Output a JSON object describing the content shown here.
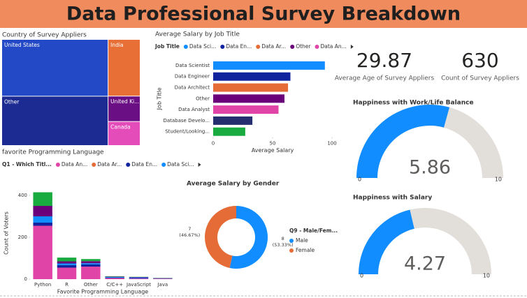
{
  "header": {
    "title": "Data Professional Survey Breakdown"
  },
  "chart_data": [
    {
      "type": "treemap",
      "title": "Country of Survey Appliers",
      "categories": [
        "United States",
        "India",
        "Other",
        "United Ki...",
        "Canada"
      ],
      "values": [
        259,
        78,
        225,
        35,
        33
      ],
      "colors": [
        "#2349c6",
        "#e86f36",
        "#1c2b92",
        "#6b0f84",
        "#e44cb9"
      ]
    },
    {
      "type": "hbar",
      "title": "Average Salary by Job Title",
      "legend_title": "Job Title",
      "legend_labels": [
        "Data Sci...",
        "Data En...",
        "Data Ar...",
        "Other",
        "Data An..."
      ],
      "categories": [
        "Data Scientist",
        "Data Engineer",
        "Data Architect",
        "Other",
        "Data Analyst",
        "Database Develo...",
        "Student/Looking..."
      ],
      "values": [
        94,
        65,
        63,
        60,
        55,
        33,
        27
      ],
      "colors": [
        "#118dff",
        "#12239e",
        "#e66c37",
        "#6b007b",
        "#e044a7",
        "#252f6f",
        "#1aab40"
      ],
      "xlim": [
        0,
        100
      ],
      "xticks": [
        0,
        50,
        100
      ],
      "x_label": "Average Salary",
      "y_label": "Job Title"
    },
    {
      "type": "stacked_bar",
      "title": "favorite Programming Language",
      "legend_title": "Q1 - Which Titl...",
      "categories": [
        "Python",
        "R",
        "Other",
        "C/C++",
        "JavaScript",
        "Java"
      ],
      "series": [
        {
          "name": "Data An...",
          "color": "#e044a7",
          "values": [
            255,
            55,
            60,
            5,
            3,
            2
          ]
        },
        {
          "name": "Data Ar...",
          "color": "#e66c37",
          "values": [
            0,
            0,
            0,
            0,
            0,
            0
          ]
        },
        {
          "name": "Data En...",
          "color": "#12239e",
          "values": [
            15,
            12,
            10,
            2,
            2,
            1
          ]
        },
        {
          "name": "Data Sci...",
          "color": "#118dff",
          "values": [
            30,
            8,
            6,
            3,
            3,
            1
          ]
        },
        {
          "name": null,
          "color": "#6b007b",
          "values": [
            50,
            10,
            10,
            2,
            2,
            1
          ]
        },
        {
          "name": null,
          "color": "#1aab40",
          "values": [
            65,
            18,
            10,
            2,
            1,
            1
          ]
        }
      ],
      "ylim": [
        0,
        440
      ],
      "yticks": [
        0,
        200,
        400
      ],
      "x_label": "Favorite Programming Language",
      "y_label": "Count of Voters"
    },
    {
      "type": "donut",
      "title": "Average Salary by Gender",
      "legend_title": "Q9 - Male/Fem...",
      "categories": [
        "Male",
        "Female"
      ],
      "values": [
        8,
        7
      ],
      "percent_labels": [
        "(53.33%)",
        "(46.67%)"
      ],
      "colors": [
        "#118dff",
        "#e66c37"
      ]
    },
    {
      "type": "card",
      "value": 29.87,
      "label": "Average Age of Survey Appliers"
    },
    {
      "type": "card",
      "value": 630,
      "label": "Count of Survey Appliers"
    },
    {
      "type": "gauge",
      "title": "Happiness with Work/Life Balance",
      "value": 5.86,
      "ylim": [
        0,
        10
      ],
      "yticks": [
        0,
        10
      ],
      "color": "#118dff",
      "track_color": "#e2ded9"
    },
    {
      "type": "gauge",
      "title": "Happiness with Salary",
      "value": 4.27,
      "ylim": [
        0,
        10
      ],
      "yticks": [
        0,
        10
      ],
      "color": "#118dff",
      "track_color": "#e2ded9"
    }
  ]
}
